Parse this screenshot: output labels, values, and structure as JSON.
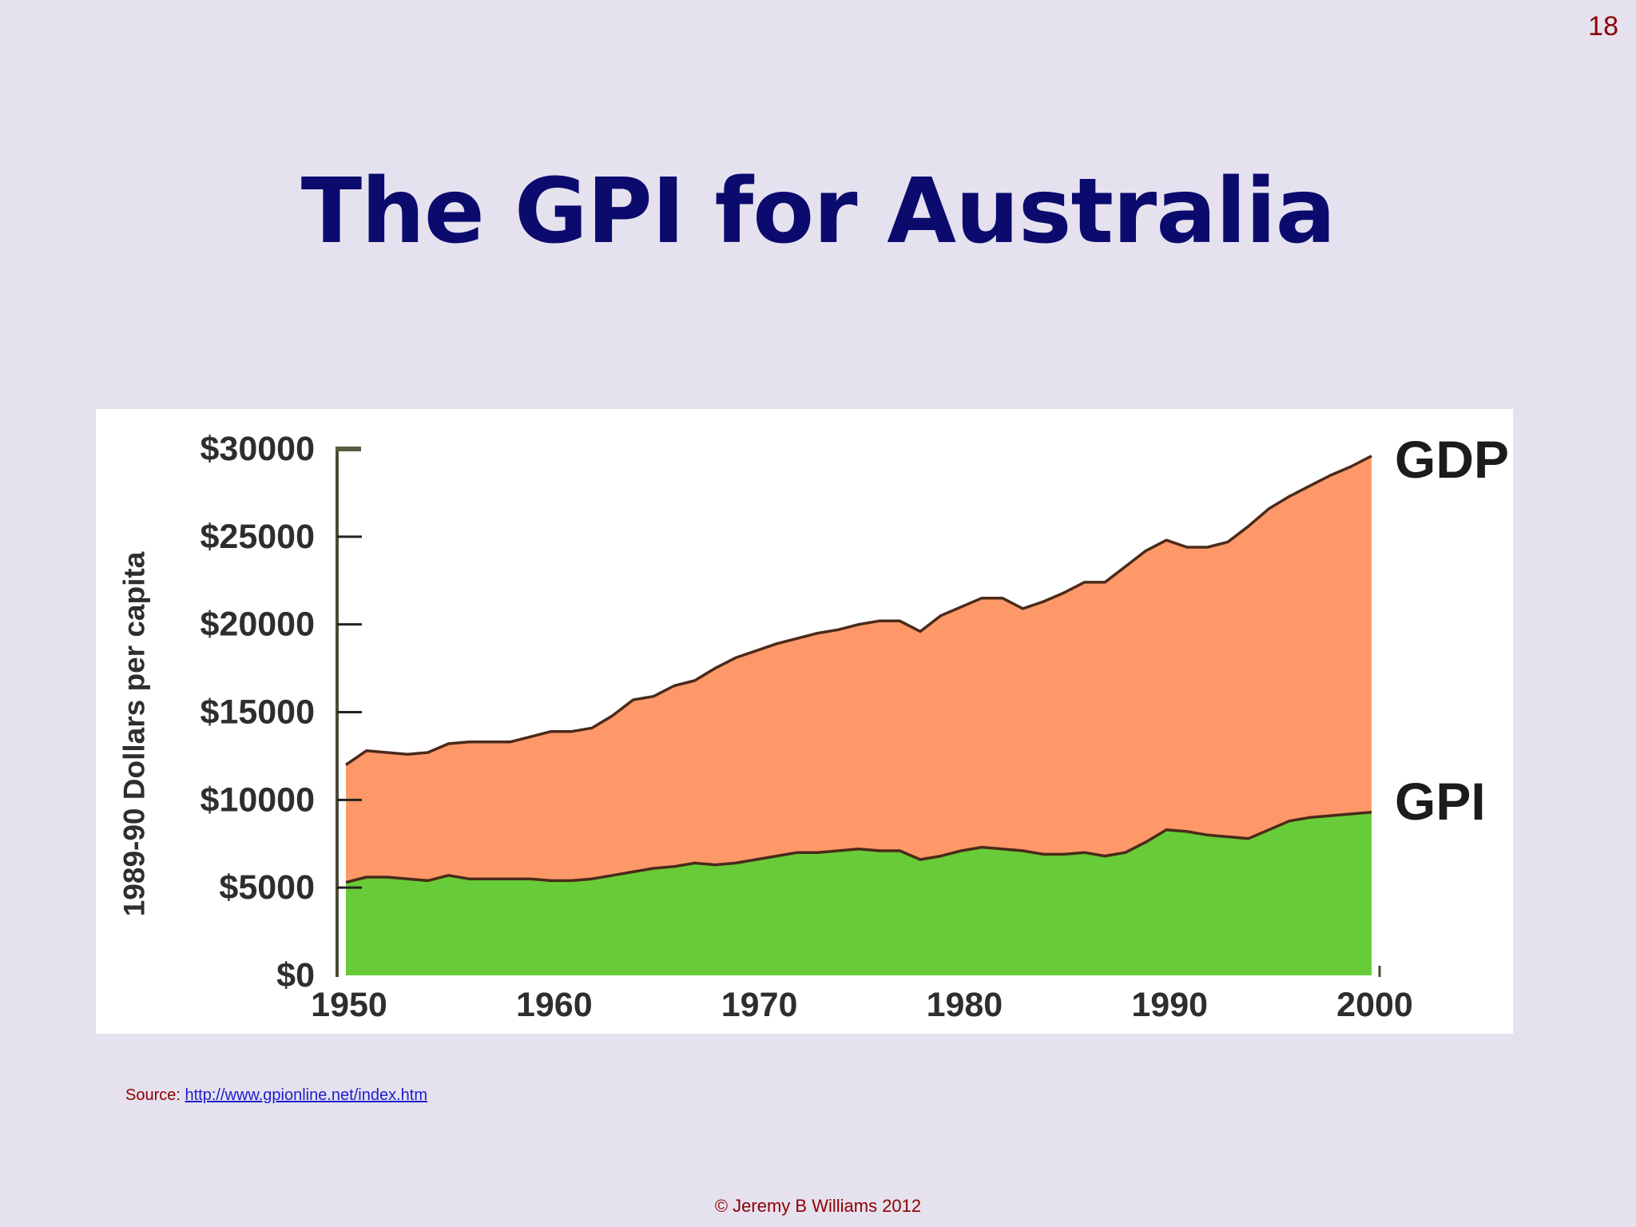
{
  "slide": {
    "number": "18",
    "title": "The GPI for Australia",
    "source_label": "Source: ",
    "source_link": "http://www.gpionline.net/index.htm",
    "copyright": "© Jeremy B Williams 2012"
  },
  "colors": {
    "background": "#e6e1ee",
    "title": "#0b0b6e",
    "gdp_fill": "#fe9868",
    "gpi_fill": "#67cc37",
    "accent": "#8b0000",
    "link": "#1d1dcc"
  },
  "chart_data": {
    "type": "area",
    "title": "",
    "xlabel": "",
    "ylabel": "1989-90 Dollars per capita",
    "xlim": [
      1950,
      2000
    ],
    "ylim": [
      0,
      30000
    ],
    "x_ticks": [
      1950,
      1960,
      1970,
      1980,
      1990,
      2000
    ],
    "x_tick_labels": [
      "1950",
      "1960",
      "1970",
      "1980",
      "1990",
      "2000"
    ],
    "y_ticks": [
      0,
      5000,
      10000,
      15000,
      20000,
      25000,
      30000
    ],
    "y_tick_labels": [
      "$0",
      "$5000",
      "$10000",
      "$15000",
      "$20000",
      "$25000",
      "$30000"
    ],
    "grid": false,
    "legend": "inline labels at right end of series",
    "series": [
      {
        "name": "GDP",
        "color": "#fe9868",
        "x": [
          1950,
          1951,
          1952,
          1953,
          1954,
          1955,
          1956,
          1957,
          1958,
          1959,
          1960,
          1961,
          1962,
          1963,
          1964,
          1965,
          1966,
          1967,
          1968,
          1969,
          1970,
          1971,
          1972,
          1973,
          1974,
          1975,
          1976,
          1977,
          1978,
          1979,
          1980,
          1981,
          1982,
          1983,
          1984,
          1985,
          1986,
          1987,
          1988,
          1989,
          1990,
          1991,
          1992,
          1993,
          1994,
          1995,
          1996,
          1997,
          1998,
          1999,
          2000
        ],
        "values": [
          12000,
          12800,
          12700,
          12600,
          12700,
          13200,
          13300,
          13300,
          13300,
          13600,
          13900,
          13900,
          14100,
          14800,
          15700,
          15900,
          16500,
          16800,
          17500,
          18100,
          18500,
          18900,
          19200,
          19500,
          19700,
          20000,
          20200,
          20200,
          19600,
          20500,
          21000,
          21500,
          21500,
          20900,
          21300,
          21800,
          22400,
          22400,
          23300,
          24200,
          24800,
          24400,
          24400,
          24700,
          25600,
          26600,
          27300,
          27900,
          28500,
          29000,
          29600
        ]
      },
      {
        "name": "GPI",
        "color": "#67cc37",
        "x": [
          1950,
          1951,
          1952,
          1953,
          1954,
          1955,
          1956,
          1957,
          1958,
          1959,
          1960,
          1961,
          1962,
          1963,
          1964,
          1965,
          1966,
          1967,
          1968,
          1969,
          1970,
          1971,
          1972,
          1973,
          1974,
          1975,
          1976,
          1977,
          1978,
          1979,
          1980,
          1981,
          1982,
          1983,
          1984,
          1985,
          1986,
          1987,
          1988,
          1989,
          1990,
          1991,
          1992,
          1993,
          1994,
          1995,
          1996,
          1997,
          1998,
          1999,
          2000
        ],
        "values": [
          5300,
          5600,
          5600,
          5500,
          5400,
          5700,
          5500,
          5500,
          5500,
          5500,
          5400,
          5400,
          5500,
          5700,
          5900,
          6100,
          6200,
          6400,
          6300,
          6400,
          6600,
          6800,
          7000,
          7000,
          7100,
          7200,
          7100,
          7100,
          6600,
          6800,
          7100,
          7300,
          7200,
          7100,
          6900,
          6900,
          7000,
          6800,
          7000,
          7600,
          8300,
          8200,
          8000,
          7900,
          7800,
          8300,
          8800,
          9000,
          9100,
          9200,
          9300
        ]
      }
    ]
  }
}
